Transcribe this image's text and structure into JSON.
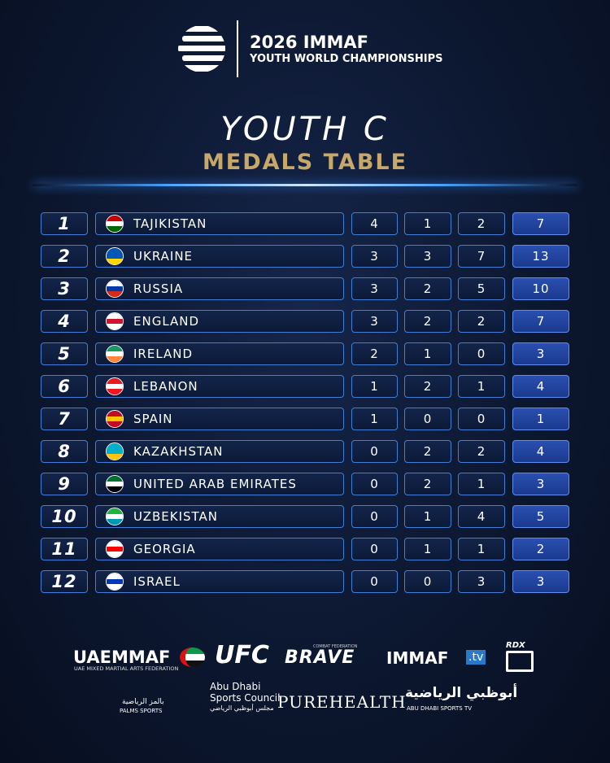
{
  "header": {
    "title": "2026 IMMAF",
    "subtitle": "YOUTH WORLD CHAMPIONSHIPS"
  },
  "heading": "YOUTH C",
  "subheading": "MEDALS TABLE",
  "table": {
    "rows": [
      [
        1,
        "TAJIKISTAN",
        4,
        1,
        2,
        7
      ],
      [
        2,
        "UKRAINE",
        3,
        3,
        7,
        13
      ],
      [
        3,
        "RUSSIA",
        3,
        2,
        5,
        10
      ],
      [
        4,
        "ENGLAND",
        3,
        2,
        2,
        7
      ],
      [
        5,
        "IRELAND",
        2,
        1,
        0,
        3
      ],
      [
        6,
        "LEBANON",
        1,
        2,
        1,
        4
      ],
      [
        7,
        "SPAIN",
        1,
        0,
        0,
        1
      ],
      [
        8,
        "KAZAKHSTAN",
        0,
        2,
        2,
        4
      ],
      [
        9,
        "UNITED ARAB EMIRATES",
        0,
        2,
        1,
        3
      ],
      [
        10,
        "UZBEKISTAN",
        0,
        1,
        4,
        5
      ],
      [
        11,
        "GEORGIA",
        0,
        1,
        1,
        2
      ],
      [
        12,
        "ISRAEL",
        0,
        0,
        3,
        3
      ]
    ]
  },
  "sponsors": {
    "uaemmaf": "UAEMMAF",
    "uaemmaf_sub": "UAE MIXED MARTIAL ARTS FEDERATION",
    "ufc": "UFC",
    "brave_top": "COMBAT FEDERATION",
    "brave": "BRAVE",
    "immaf": "IMMAF",
    "immaf_tv": ".tv",
    "rdx": "RDX",
    "palms_ar": "بالمز الرياضية",
    "palms": "PALMS SPORTS",
    "adsc_1": "Abu Dhabi",
    "adsc_2": "Sports Council",
    "adsc_ar": "مجلس أبوظبي الرياضي",
    "purehealth": "PUREHEALTH",
    "adtv_ar": "أبوظبي الرياضية",
    "adtv": "ABU DHABI SPORTS TV"
  }
}
